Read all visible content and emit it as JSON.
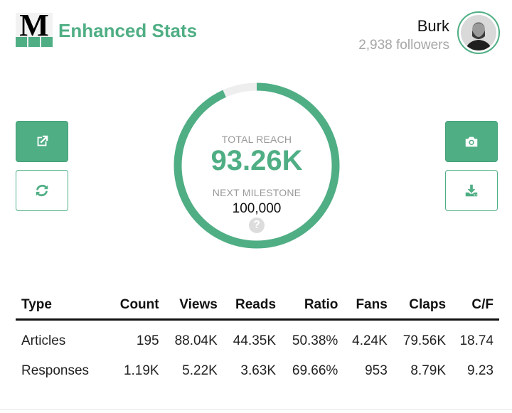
{
  "header": {
    "logo_letter": "M",
    "brand": "Enhanced Stats",
    "user_name": "Burk",
    "followers": "2,938 followers",
    "accent_color": "#4fae84"
  },
  "toolbar_left": {
    "open_icon": "external-link-icon",
    "refresh_icon": "refresh-icon"
  },
  "toolbar_right": {
    "screenshot_icon": "camera-icon",
    "download_icon": "download-icon"
  },
  "gauge": {
    "total_label": "TOTAL REACH",
    "total_value": "93.26K",
    "milestone_label": "NEXT MILESTONE",
    "milestone_value": "100,000",
    "progress_fraction": 0.9326,
    "help_glyph": "?"
  },
  "table": {
    "columns": [
      "Type",
      "Count",
      "Views",
      "Reads",
      "Ratio",
      "Fans",
      "Claps",
      "C/F"
    ],
    "rows": [
      [
        "Articles",
        "195",
        "88.04K",
        "44.35K",
        "50.38%",
        "4.24K",
        "79.56K",
        "18.74"
      ],
      [
        "Responses",
        "1.19K",
        "5.22K",
        "3.63K",
        "69.66%",
        "953",
        "8.79K",
        "9.23"
      ]
    ]
  }
}
